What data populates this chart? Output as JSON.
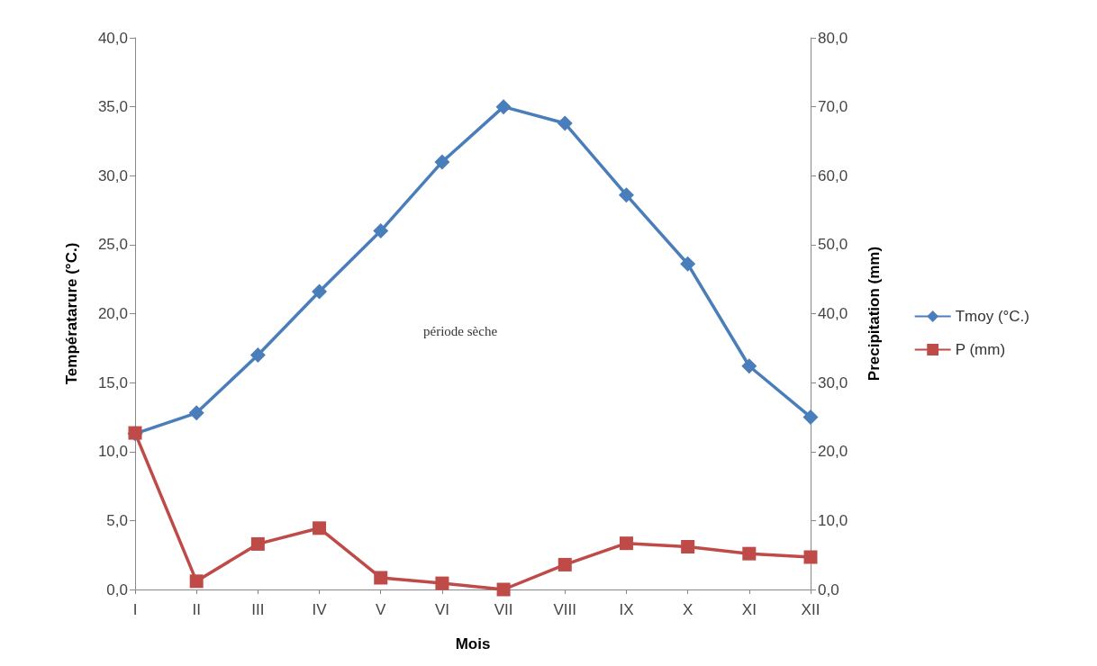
{
  "chart_data": {
    "type": "line",
    "xlabel": "Mois",
    "ylabel": "Températarure (°C.)",
    "y2label": "Precipitation (mm)",
    "categories": [
      "I",
      "II",
      "III",
      "IV",
      "V",
      "VI",
      "VII",
      "VIII",
      "IX",
      "X",
      "XI",
      "XII"
    ],
    "series": [
      {
        "name": "Tmoy (°C.)",
        "color": "#4a7ebb",
        "marker": "diamond",
        "values": [
          11.3,
          12.8,
          17.0,
          21.6,
          26.0,
          31.0,
          35.0,
          33.8,
          28.6,
          23.6,
          16.2,
          12.5
        ]
      },
      {
        "name": "P (mm)",
        "color": "#be4b48",
        "marker": "square",
        "axis": "y2",
        "values": [
          22.7,
          1.2,
          6.6,
          8.9,
          1.7,
          0.9,
          0,
          3.6,
          6.7,
          6.2,
          5.2,
          4.7
        ]
      }
    ],
    "ylim": [
      0,
      40
    ],
    "yticks": [
      {
        "value": 0,
        "label": "0,0"
      },
      {
        "value": 5,
        "label": "5,0"
      },
      {
        "value": 10,
        "label": "10,0"
      },
      {
        "value": 15,
        "label": "15,0"
      },
      {
        "value": 20,
        "label": "20,0"
      },
      {
        "value": 25,
        "label": "25,0"
      },
      {
        "value": 30,
        "label": "30,0"
      },
      {
        "value": 35,
        "label": "35,0"
      },
      {
        "value": 40,
        "label": "40,0"
      }
    ],
    "y2lim": [
      0,
      80
    ],
    "y2ticks": [
      {
        "value": 0,
        "label": "0,0"
      },
      {
        "value": 10,
        "label": "10,0"
      },
      {
        "value": 20,
        "label": "20,0"
      },
      {
        "value": 30,
        "label": "30,0"
      },
      {
        "value": 40,
        "label": "40,0"
      },
      {
        "value": 50,
        "label": "50,0"
      },
      {
        "value": 60,
        "label": "60,0"
      },
      {
        "value": 70,
        "label": "70,0"
      },
      {
        "value": 80,
        "label": "80,0"
      }
    ],
    "annotations": [
      "période sèche"
    ],
    "legend": "right",
    "grid": false
  }
}
